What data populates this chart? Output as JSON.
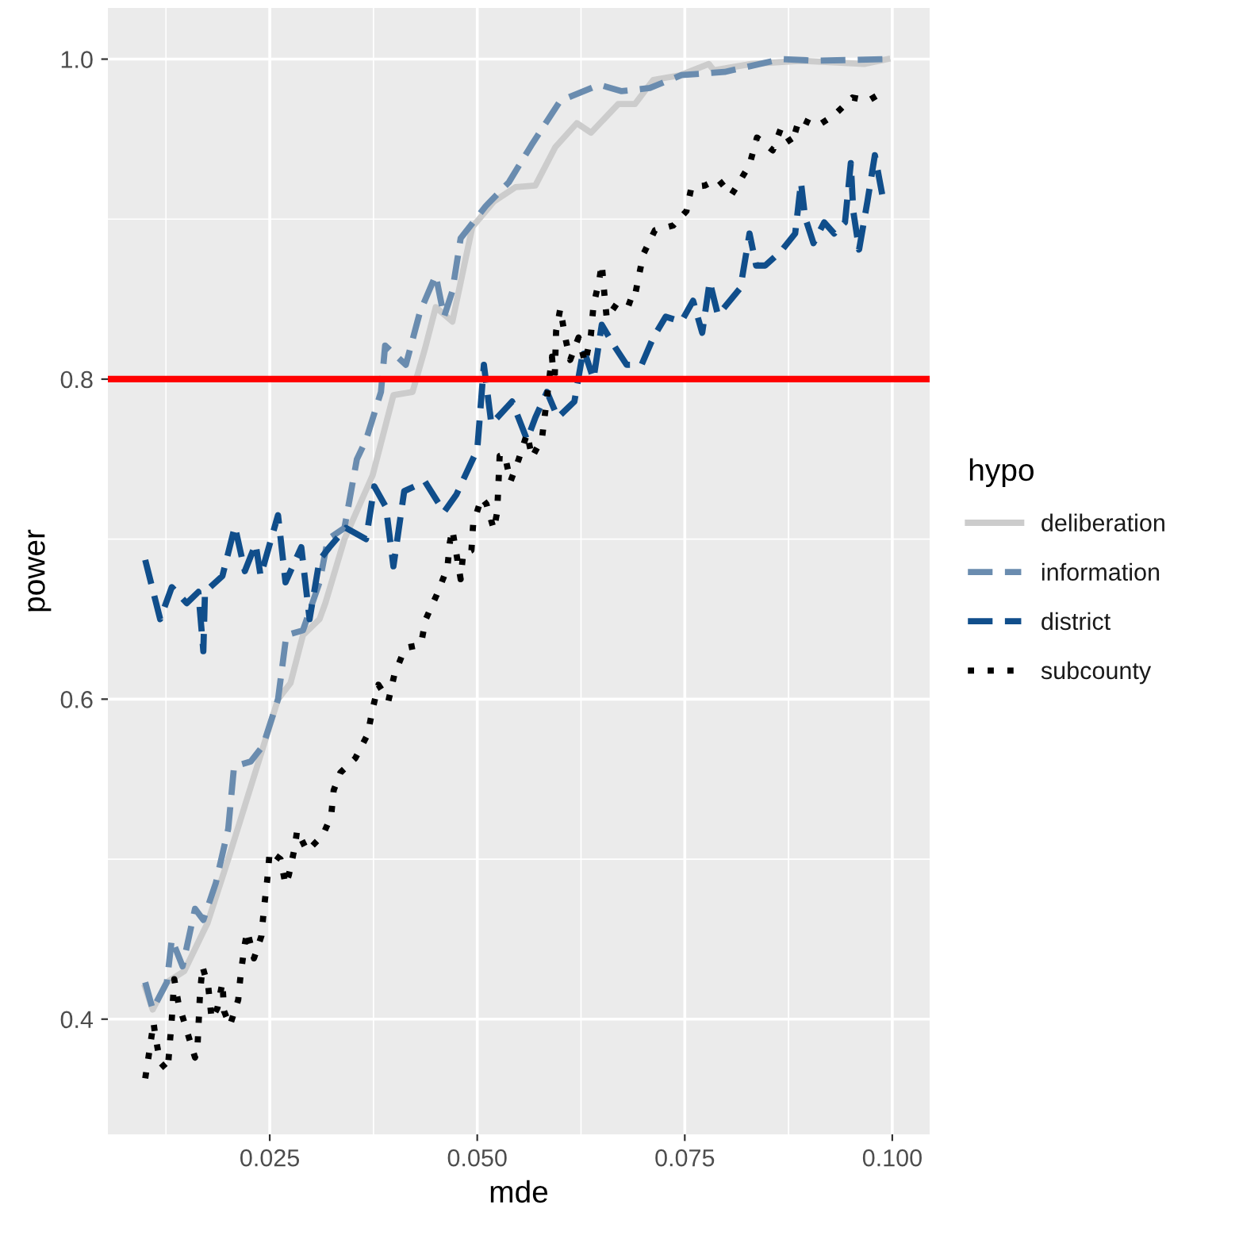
{
  "chart_data": {
    "type": "line",
    "xlabel": "mde",
    "ylabel": "power",
    "legend_title": "hypo",
    "legend": "right",
    "grid": true,
    "xlim": [
      0.0055,
      0.1045
    ],
    "xticks": [
      {
        "value": 0.025,
        "label": "0.025"
      },
      {
        "value": 0.05,
        "label": "0.050"
      },
      {
        "value": 0.075,
        "label": "0.075"
      },
      {
        "value": 0.1,
        "label": "0.100"
      }
    ],
    "ylim": [
      0.328,
      1.032
    ],
    "yticks": [
      {
        "value": 0.4,
        "label": "0.4"
      },
      {
        "value": 0.6,
        "label": "0.6"
      },
      {
        "value": 0.8,
        "label": "0.8"
      },
      {
        "value": 1.0,
        "label": "1.0"
      }
    ],
    "ref_lines": [
      {
        "axis": "y",
        "value": 0.8,
        "color": "#ff0000"
      }
    ],
    "series": [
      {
        "name": "deliberation",
        "color": "#cccccc",
        "line_style": "solid",
        "x": [
          0.01,
          0.0109,
          0.0126,
          0.0147,
          0.0175,
          0.02,
          0.0242,
          0.026,
          0.0275,
          0.029,
          0.031,
          0.0317,
          0.034,
          0.0374,
          0.0399,
          0.0422,
          0.0437,
          0.045,
          0.047,
          0.0494,
          0.052,
          0.0546,
          0.057,
          0.0594,
          0.062,
          0.0637,
          0.067,
          0.069,
          0.0712,
          0.0745,
          0.0779,
          0.0785,
          0.083,
          0.089,
          0.0966,
          0.0994
        ],
        "values": [
          0.42,
          0.406,
          0.423,
          0.43,
          0.46,
          0.5,
          0.57,
          0.6,
          0.61,
          0.64,
          0.65,
          0.66,
          0.7,
          0.74,
          0.79,
          0.792,
          0.819,
          0.845,
          0.836,
          0.895,
          0.911,
          0.92,
          0.921,
          0.945,
          0.96,
          0.954,
          0.972,
          0.972,
          0.987,
          0.99,
          0.997,
          0.993,
          0.997,
          0.999,
          0.997,
          1.0
        ]
      },
      {
        "name": "information",
        "color": "#6a8caf",
        "line_style": "dashed",
        "x": [
          0.01,
          0.0109,
          0.0126,
          0.0132,
          0.0145,
          0.016,
          0.017,
          0.0185,
          0.02,
          0.0207,
          0.0227,
          0.0242,
          0.026,
          0.027,
          0.029,
          0.031,
          0.032,
          0.034,
          0.0355,
          0.0366,
          0.0384,
          0.0389,
          0.0414,
          0.0431,
          0.045,
          0.046,
          0.047,
          0.048,
          0.051,
          0.0538,
          0.0565,
          0.06,
          0.0647,
          0.0674,
          0.0708,
          0.0746,
          0.0798,
          0.0866,
          0.091,
          0.0994
        ],
        "values": [
          0.423,
          0.406,
          0.423,
          0.45,
          0.433,
          0.469,
          0.462,
          0.485,
          0.519,
          0.558,
          0.561,
          0.571,
          0.6,
          0.64,
          0.643,
          0.673,
          0.7,
          0.707,
          0.75,
          0.762,
          0.792,
          0.821,
          0.809,
          0.842,
          0.865,
          0.839,
          0.855,
          0.888,
          0.908,
          0.923,
          0.946,
          0.974,
          0.984,
          0.98,
          0.982,
          0.99,
          0.992,
          1.0,
          0.999,
          1.0
        ]
      },
      {
        "name": "district",
        "color": "#104e8b",
        "line_style": "dashed",
        "x": [
          0.01,
          0.0118,
          0.0132,
          0.015,
          0.0164,
          0.017,
          0.0172,
          0.0193,
          0.0208,
          0.022,
          0.0233,
          0.0239,
          0.026,
          0.0269,
          0.0288,
          0.0298,
          0.031,
          0.0322,
          0.0342,
          0.0366,
          0.0376,
          0.039,
          0.0399,
          0.0412,
          0.0437,
          0.046,
          0.0475,
          0.05,
          0.0508,
          0.0517,
          0.0542,
          0.056,
          0.057,
          0.0584,
          0.0597,
          0.0617,
          0.0628,
          0.064,
          0.065,
          0.0666,
          0.068,
          0.0698,
          0.0712,
          0.0727,
          0.0746,
          0.076,
          0.0771,
          0.078,
          0.079,
          0.0817,
          0.0828,
          0.0836,
          0.0847,
          0.0866,
          0.0883,
          0.089,
          0.0895,
          0.0905,
          0.0918,
          0.093,
          0.0943,
          0.095,
          0.0953,
          0.096,
          0.097,
          0.0979,
          0.0988
        ],
        "values": [
          0.687,
          0.65,
          0.67,
          0.66,
          0.667,
          0.63,
          0.667,
          0.677,
          0.708,
          0.68,
          0.697,
          0.677,
          0.715,
          0.673,
          0.695,
          0.65,
          0.687,
          0.695,
          0.707,
          0.7,
          0.733,
          0.72,
          0.683,
          0.73,
          0.736,
          0.717,
          0.728,
          0.756,
          0.809,
          0.772,
          0.786,
          0.762,
          0.776,
          0.792,
          0.776,
          0.786,
          0.819,
          0.8,
          0.834,
          0.82,
          0.809,
          0.809,
          0.826,
          0.839,
          0.836,
          0.849,
          0.829,
          0.861,
          0.84,
          0.857,
          0.891,
          0.871,
          0.871,
          0.88,
          0.891,
          0.923,
          0.901,
          0.885,
          0.898,
          0.891,
          0.898,
          0.935,
          0.905,
          0.881,
          0.911,
          0.94,
          0.915
        ]
      },
      {
        "name": "subcounty",
        "color": "#000000",
        "line_style": "dotted",
        "x": [
          0.01,
          0.0105,
          0.011,
          0.0112,
          0.0118,
          0.0127,
          0.0132,
          0.0134,
          0.0135,
          0.014,
          0.015,
          0.016,
          0.0163,
          0.0166,
          0.0169,
          0.0176,
          0.018,
          0.0187,
          0.0193,
          0.0195,
          0.0202,
          0.0212,
          0.0215,
          0.022,
          0.0223,
          0.0231,
          0.024,
          0.0243,
          0.0247,
          0.025,
          0.0263,
          0.0269,
          0.0273,
          0.028,
          0.0283,
          0.0295,
          0.0314,
          0.0324,
          0.0327,
          0.0335,
          0.0353,
          0.0368,
          0.0374,
          0.0381,
          0.0393,
          0.04,
          0.0413,
          0.0432,
          0.0438,
          0.0451,
          0.0464,
          0.0467,
          0.047,
          0.048,
          0.0483,
          0.0493,
          0.0495,
          0.0505,
          0.0511,
          0.052,
          0.0524,
          0.0527,
          0.0533,
          0.054,
          0.055,
          0.056,
          0.0566,
          0.0578,
          0.059,
          0.0593,
          0.0595,
          0.06,
          0.0606,
          0.0612,
          0.0622,
          0.063,
          0.0637,
          0.064,
          0.0647,
          0.065,
          0.0653,
          0.0656,
          0.0672,
          0.0688,
          0.0693,
          0.07,
          0.0714,
          0.0736,
          0.0752,
          0.0758,
          0.0774,
          0.079,
          0.0806,
          0.0812,
          0.0828,
          0.0837,
          0.0856,
          0.0866,
          0.0879,
          0.0888,
          0.0909,
          0.093,
          0.0952,
          0.0971,
          0.0987
        ],
        "values": [
          0.363,
          0.38,
          0.398,
          0.39,
          0.373,
          0.368,
          0.4,
          0.417,
          0.425,
          0.41,
          0.393,
          0.376,
          0.383,
          0.416,
          0.433,
          0.42,
          0.4,
          0.407,
          0.423,
          0.405,
          0.396,
          0.412,
          0.428,
          0.447,
          0.455,
          0.438,
          0.452,
          0.469,
          0.487,
          0.505,
          0.5,
          0.484,
          0.49,
          0.507,
          0.518,
          0.505,
          0.515,
          0.527,
          0.543,
          0.554,
          0.563,
          0.578,
          0.594,
          0.609,
          0.599,
          0.615,
          0.632,
          0.634,
          0.65,
          0.665,
          0.682,
          0.698,
          0.706,
          0.675,
          0.691,
          0.693,
          0.709,
          0.726,
          0.722,
          0.706,
          0.717,
          0.752,
          0.753,
          0.736,
          0.75,
          0.766,
          0.751,
          0.763,
          0.814,
          0.796,
          0.83,
          0.844,
          0.826,
          0.812,
          0.826,
          0.81,
          0.828,
          0.846,
          0.862,
          0.872,
          0.854,
          0.838,
          0.85,
          0.847,
          0.86,
          0.878,
          0.893,
          0.896,
          0.905,
          0.92,
          0.921,
          0.925,
          0.915,
          0.92,
          0.934,
          0.951,
          0.943,
          0.957,
          0.947,
          0.963,
          0.958,
          0.965,
          0.976,
          0.974,
          0.979
        ]
      }
    ]
  }
}
